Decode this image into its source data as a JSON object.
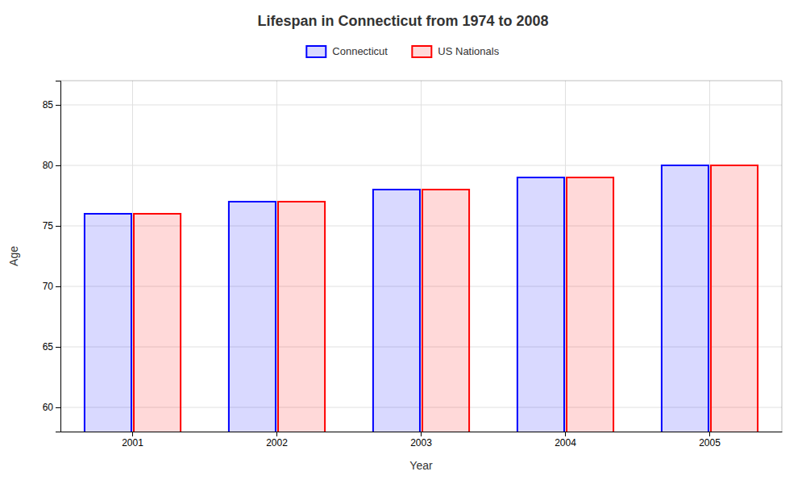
{
  "chart_data": {
    "type": "bar",
    "title": "Lifespan in Connecticut from 1974 to 2008",
    "xlabel": "Year",
    "ylabel": "Age",
    "categories": [
      "2001",
      "2002",
      "2003",
      "2004",
      "2005"
    ],
    "series": [
      {
        "name": "Connecticut",
        "color": "#0000ff",
        "values": [
          76,
          77,
          78,
          79,
          80
        ]
      },
      {
        "name": "US Nationals",
        "color": "#ff0000",
        "values": [
          76,
          77,
          78,
          79,
          80
        ]
      }
    ],
    "ylim": [
      58,
      87
    ],
    "yticks": [
      60,
      65,
      70,
      75,
      80,
      85
    ],
    "grid": true,
    "legend": "top"
  }
}
